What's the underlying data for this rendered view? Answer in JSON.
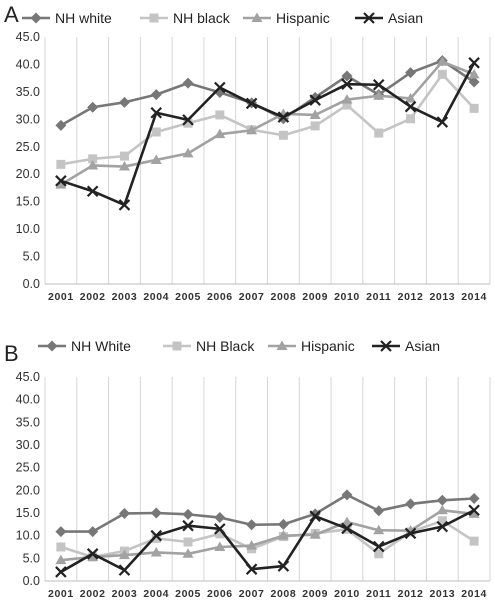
{
  "chart_data": [
    {
      "type": "line",
      "panel_label": "A",
      "x": [
        "2001",
        "2002",
        "2003",
        "2004",
        "2005",
        "2006",
        "2007",
        "2008",
        "2009",
        "2010",
        "2011",
        "2012",
        "2013",
        "2014"
      ],
      "ylim": [
        0,
        45
      ],
      "yticks": [
        "0.0",
        "5.0",
        "10.0",
        "15.0",
        "20.0",
        "25.0",
        "30.0",
        "35.0",
        "40.0",
        "45.0"
      ],
      "grid": "vertical",
      "legend": "top",
      "series": [
        {
          "name": "NH white",
          "color": "#777777",
          "marker": "diamond",
          "values": [
            28.9,
            32.2,
            33.1,
            34.5,
            36.6,
            34.9,
            33.0,
            30.1,
            34.0,
            37.9,
            34.5,
            38.5,
            40.7,
            36.8
          ]
        },
        {
          "name": "NH black",
          "color": "#c4c4c4",
          "marker": "square",
          "values": [
            21.8,
            22.8,
            23.3,
            27.7,
            29.3,
            30.8,
            28.1,
            27.1,
            28.8,
            32.6,
            27.5,
            30.1,
            38.2,
            32.0
          ]
        },
        {
          "name": "Hispanic",
          "color": "#a2a2a2",
          "marker": "triangle",
          "values": [
            18.1,
            21.6,
            21.4,
            22.6,
            23.8,
            27.3,
            28.0,
            31.0,
            30.8,
            33.6,
            34.3,
            33.8,
            40.5,
            38.2
          ]
        },
        {
          "name": "Asian",
          "color": "#222222",
          "marker": "x",
          "values": [
            18.8,
            16.9,
            14.4,
            31.2,
            29.9,
            35.8,
            32.9,
            30.4,
            33.5,
            36.4,
            36.3,
            32.3,
            29.5,
            40.3
          ]
        }
      ]
    },
    {
      "type": "line",
      "panel_label": "B",
      "x": [
        "2001",
        "2002",
        "2003",
        "2004",
        "2005",
        "2006",
        "2007",
        "2008",
        "2009",
        "2010",
        "2011",
        "2012",
        "2013",
        "2014"
      ],
      "ylim": [
        0,
        45
      ],
      "yticks": [
        "0.0",
        "5.0",
        "10.0",
        "15.0",
        "20.0",
        "25.0",
        "30.0",
        "35.0",
        "40.0",
        "45.0"
      ],
      "grid": "vertical",
      "legend": "top",
      "series": [
        {
          "name": "NH White",
          "color": "#777777",
          "marker": "diamond",
          "values": [
            10.9,
            10.9,
            14.9,
            15.0,
            14.7,
            14.0,
            12.4,
            12.5,
            14.8,
            19.0,
            15.5,
            17.0,
            17.8,
            18.2
          ]
        },
        {
          "name": "NH Black",
          "color": "#c4c4c4",
          "marker": "square",
          "values": [
            7.5,
            5.3,
            6.6,
            9.4,
            8.6,
            10.4,
            7.1,
            9.8,
            10.5,
            11.4,
            6.0,
            10.8,
            13.3,
            8.8
          ]
        },
        {
          "name": "Hispanic",
          "color": "#a2a2a2",
          "marker": "triangle",
          "values": [
            4.6,
            5.3,
            5.7,
            6.3,
            6.0,
            7.5,
            7.8,
            10.0,
            10.2,
            13.0,
            11.2,
            11.1,
            15.6,
            14.8
          ]
        },
        {
          "name": "Asian",
          "color": "#222222",
          "marker": "x",
          "values": [
            2.0,
            6.0,
            2.4,
            10.0,
            12.2,
            11.5,
            2.6,
            3.3,
            14.3,
            11.6,
            7.6,
            10.5,
            12.0,
            15.6
          ]
        }
      ]
    }
  ]
}
